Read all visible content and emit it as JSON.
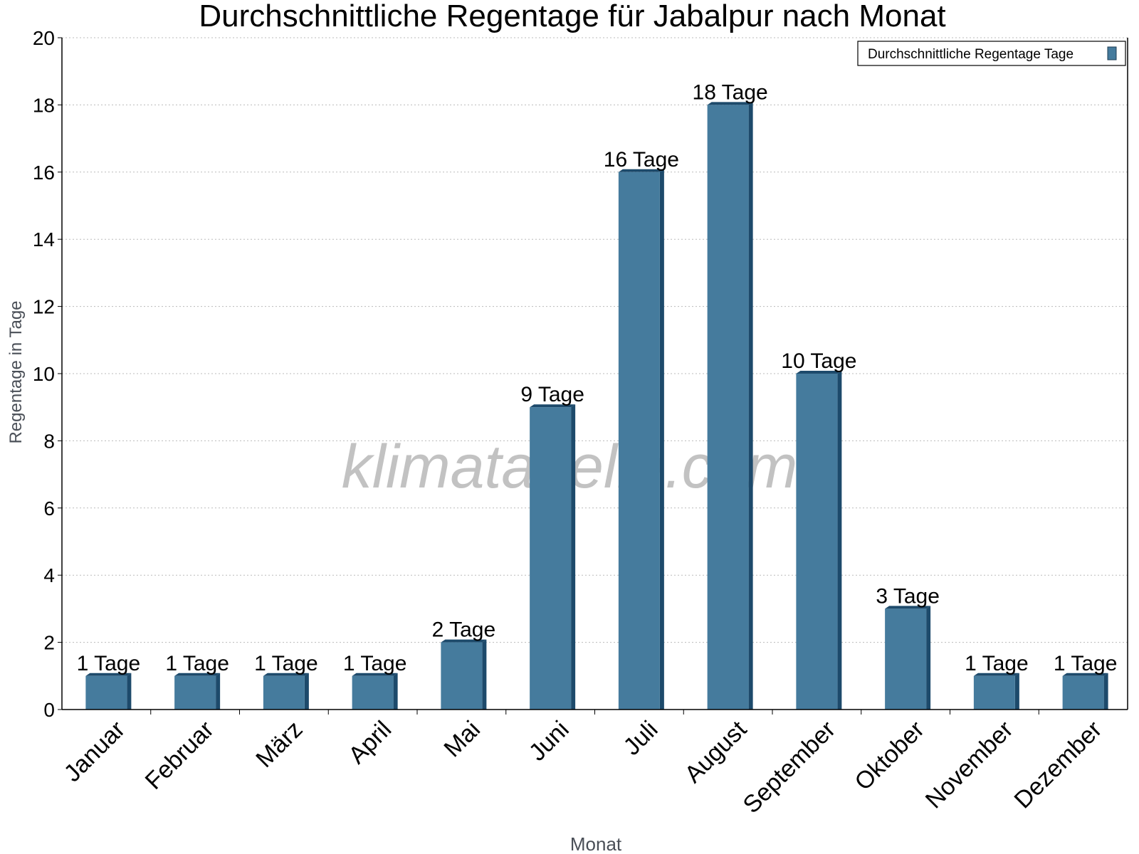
{
  "chart_data": {
    "type": "bar",
    "title": "Durchschnittliche Regentage für Jabalpur nach Monat",
    "xlabel": "Monat",
    "ylabel": "Regentage in Tage",
    "categories": [
      "Januar",
      "Februar",
      "März",
      "April",
      "Mai",
      "Juni",
      "Juli",
      "August",
      "September",
      "Oktober",
      "November",
      "Dezember"
    ],
    "series": [
      {
        "name": "Durchschnittliche Regentage Tage",
        "values": [
          1,
          1,
          1,
          1,
          2,
          9,
          16,
          18,
          10,
          3,
          1,
          1
        ],
        "color": "#457b9d",
        "side_color": "#1d4a6b"
      }
    ],
    "data_labels": [
      "1 Tage",
      "1 Tage",
      "1 Tage",
      "1 Tage",
      "2 Tage",
      "9 Tage",
      "16 Tage",
      "18 Tage",
      "10 Tage",
      "3 Tage",
      "1 Tage",
      "1 Tage"
    ],
    "ylim": [
      0,
      20
    ],
    "yticks": [
      0,
      2,
      4,
      6,
      8,
      10,
      12,
      14,
      16,
      18,
      20
    ],
    "grid": true,
    "legend": "top-right",
    "watermark": "klimatabelle.com"
  }
}
